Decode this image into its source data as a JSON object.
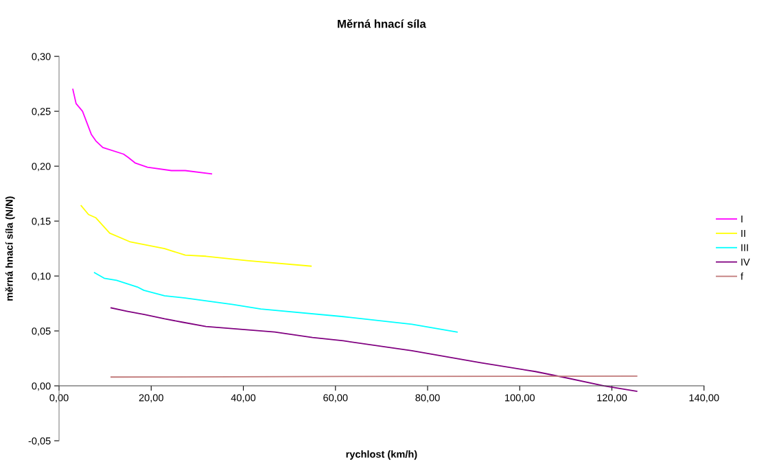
{
  "chart_data": {
    "type": "line",
    "title": "Měrná hnací síla",
    "xlabel": "rychlost (km/h)",
    "ylabel": "měrná hnací síla (N/N)",
    "xlim": [
      0,
      140
    ],
    "ylim": [
      -0.05,
      0.3
    ],
    "xticks": [
      {
        "value": 0,
        "label": "0,00"
      },
      {
        "value": 20,
        "label": "20,00"
      },
      {
        "value": 40,
        "label": "40,00"
      },
      {
        "value": 60,
        "label": "60,00"
      },
      {
        "value": 80,
        "label": "80,00"
      },
      {
        "value": 100,
        "label": "100,00"
      },
      {
        "value": 120,
        "label": "120,00"
      },
      {
        "value": 140,
        "label": "140,00"
      }
    ],
    "yticks": [
      {
        "value": -0.05,
        "label": "-0,05"
      },
      {
        "value": 0,
        "label": "0,00"
      },
      {
        "value": 0.05,
        "label": "0,05"
      },
      {
        "value": 0.1,
        "label": "0,10"
      },
      {
        "value": 0.15,
        "label": "0,15"
      },
      {
        "value": 0.2,
        "label": "0,20"
      },
      {
        "value": 0.25,
        "label": "0,25"
      },
      {
        "value": 0.3,
        "label": "0,30"
      }
    ],
    "grid": false,
    "legend": "right",
    "marker": "none",
    "line_style": "solid",
    "series": [
      {
        "name": "I",
        "color": "#ff00ff",
        "x": [
          3.0,
          3.7,
          5.1,
          7.0,
          8.0,
          9.5,
          14.0,
          15.0,
          16.5,
          19.2,
          24.4,
          27.4,
          33.1
        ],
        "values": [
          0.27,
          0.257,
          0.25,
          0.229,
          0.223,
          0.217,
          0.211,
          0.208,
          0.203,
          0.199,
          0.196,
          0.196,
          0.193
        ]
      },
      {
        "name": "II",
        "color": "#ffff00",
        "x": [
          4.8,
          6.4,
          8.0,
          11.0,
          15.5,
          22.9,
          24.4,
          27.4,
          31.9,
          40.8,
          54.7
        ],
        "values": [
          0.164,
          0.156,
          0.153,
          0.139,
          0.131,
          0.125,
          0.123,
          0.119,
          0.118,
          0.114,
          0.109
        ]
      },
      {
        "name": "III",
        "color": "#00ffff",
        "x": [
          7.7,
          9.8,
          12.5,
          17.0,
          18.4,
          22.9,
          27.4,
          37.8,
          43.8,
          61.7,
          76.6,
          86.4
        ],
        "values": [
          0.103,
          0.098,
          0.096,
          0.09,
          0.087,
          0.082,
          0.08,
          0.074,
          0.07,
          0.063,
          0.056,
          0.049
        ]
      },
      {
        "name": "IV",
        "color": "#800080",
        "x": [
          11.3,
          14.7,
          18.5,
          22.9,
          26.7,
          31.9,
          46.8,
          55.0,
          61.7,
          76.6,
          91.5,
          103.4,
          109.3,
          118.3,
          125.4
        ],
        "values": [
          0.071,
          0.068,
          0.065,
          0.061,
          0.058,
          0.054,
          0.049,
          0.044,
          0.041,
          0.032,
          0.021,
          0.013,
          0.008,
          0.0,
          -0.005
        ]
      },
      {
        "name": "f",
        "color": "#c07878",
        "x": [
          11.3,
          62.0,
          125.4
        ],
        "values": [
          0.008,
          0.0085,
          0.0088
        ]
      }
    ]
  }
}
